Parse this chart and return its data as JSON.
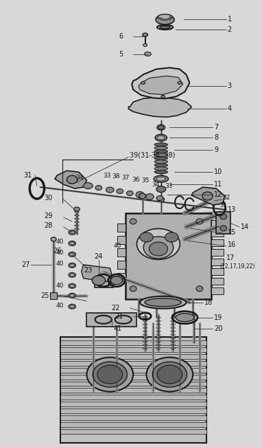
{
  "bg_color": "#d8d8d8",
  "fig_width": 3.82,
  "fig_height": 6.5,
  "dpi": 100,
  "lc": "#1a1a1a",
  "label_fs": 6.5,
  "parts_color": "#a0a0a0",
  "dark_color": "#555555",
  "mid_color": "#888888"
}
